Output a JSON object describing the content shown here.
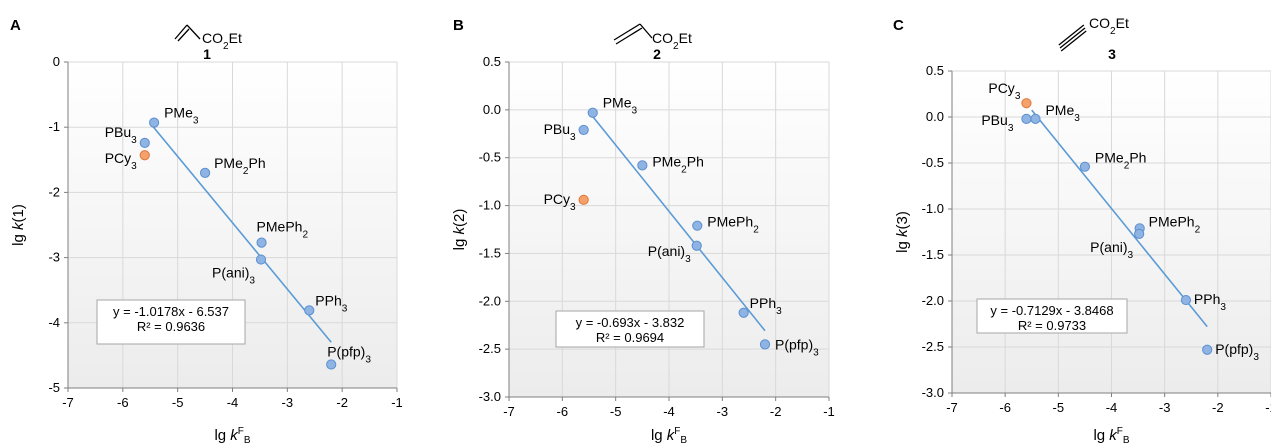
{
  "colors": {
    "series": "#8fb4e3",
    "series_stroke": "#5b8fd0",
    "outlier": "#f4a16b",
    "outlier_stroke": "#e0763a",
    "fit_line": "#5b9bd5",
    "grid": "#d9d9d9",
    "plot_bg_top": "#ffffff",
    "plot_bg_bottom": "#eeeeee"
  },
  "chart_data": [
    {
      "type": "scatter",
      "panel_letter": "A",
      "compound_number": "1",
      "compound_formula": "CO2Et",
      "xlabel": "lg kFB",
      "ylabel": "lg k(1)",
      "xlim": [
        -7,
        -1
      ],
      "ylim": [
        -5,
        0
      ],
      "xticks": [
        -7,
        -6,
        -5,
        -4,
        -3,
        -2,
        -1
      ],
      "yticks": [
        -5,
        -4,
        -3,
        -2,
        -1,
        0
      ],
      "xtick_labels": [
        "-7",
        "-6",
        "-5",
        "-4",
        "-3",
        "-2",
        "-1"
      ],
      "ytick_labels": [
        "-5",
        "-4",
        "-3",
        "-2",
        "-1",
        "0"
      ],
      "grid": true,
      "points": [
        {
          "label": "PMe3",
          "x": -5.43,
          "y": -0.93
        },
        {
          "label": "PBu3",
          "x": -5.6,
          "y": -1.24
        },
        {
          "label": "PCy3",
          "x": -5.6,
          "y": -1.43,
          "outlier": true
        },
        {
          "label": "PMe2Ph",
          "x": -4.5,
          "y": -1.7
        },
        {
          "label": "PMePh2",
          "x": -3.47,
          "y": -2.77
        },
        {
          "label": "P(ani)3",
          "x": -3.48,
          "y": -3.03
        },
        {
          "label": "PPh3",
          "x": -2.6,
          "y": -3.81
        },
        {
          "label": "P(pfp)3",
          "x": -2.2,
          "y": -4.64
        }
      ],
      "fit": {
        "slope": -1.0178,
        "intercept": -6.537,
        "x_range": [
          -5.5,
          -2.2
        ],
        "equation": "y = -1.0178x - 6.537",
        "r2": "R² = 0.9636"
      }
    },
    {
      "type": "scatter",
      "panel_letter": "B",
      "compound_number": "2",
      "compound_formula": "CO2Et",
      "xlabel": "lg kFB",
      "ylabel": "lg k(2)",
      "xlim": [
        -7,
        -1
      ],
      "ylim": [
        -3,
        0.5
      ],
      "xticks": [
        -7,
        -6,
        -5,
        -4,
        -3,
        -2,
        -1
      ],
      "yticks": [
        -3,
        -2.5,
        -2,
        -1.5,
        -1,
        -0.5,
        0,
        0.5
      ],
      "xtick_labels": [
        "-7",
        "-6",
        "-5",
        "-4",
        "-3",
        "-2",
        "-1"
      ],
      "ytick_labels": [
        "-3.0",
        "-2.5",
        "-2.0",
        "-1.5",
        "-1.0",
        "-0.5",
        "0.0",
        "0.5"
      ],
      "grid": true,
      "points": [
        {
          "label": "PMe3",
          "x": -5.43,
          "y": -0.03
        },
        {
          "label": "PBu3",
          "x": -5.6,
          "y": -0.21
        },
        {
          "label": "PMe2Ph",
          "x": -4.5,
          "y": -0.58
        },
        {
          "label": "PCy3",
          "x": -5.6,
          "y": -0.94,
          "outlier": true
        },
        {
          "label": "PMePh2",
          "x": -3.47,
          "y": -1.21
        },
        {
          "label": "P(ani)3",
          "x": -3.48,
          "y": -1.42
        },
        {
          "label": "PPh3",
          "x": -2.6,
          "y": -2.12
        },
        {
          "label": "P(pfp)3",
          "x": -2.2,
          "y": -2.45
        }
      ],
      "fit": {
        "slope": -0.693,
        "intercept": -3.832,
        "x_range": [
          -5.5,
          -2.2
        ],
        "equation": "y = -0.693x - 3.832",
        "r2": "R² = 0.9694"
      }
    },
    {
      "type": "scatter",
      "panel_letter": "C",
      "compound_number": "3",
      "compound_formula": "CO2Et",
      "xlabel": "lg kFB",
      "ylabel": "lg k(3)",
      "xlim": [
        -7,
        -1
      ],
      "ylim": [
        -3,
        0.5
      ],
      "xticks": [
        -7,
        -6,
        -5,
        -4,
        -3,
        -2,
        -1
      ],
      "yticks": [
        -3,
        -2.5,
        -2,
        -1.5,
        -1,
        -0.5,
        0,
        0.5
      ],
      "xtick_labels": [
        "-7",
        "-6",
        "-5",
        "-4",
        "-3",
        "-2",
        "-1"
      ],
      "ytick_labels": [
        "-3.0",
        "-2.5",
        "-2.0",
        "-1.5",
        "-1.0",
        "-0.5",
        "0.0",
        "0.5"
      ],
      "grid": true,
      "points": [
        {
          "label": "PCy3",
          "x": -5.6,
          "y": 0.15,
          "outlier": true
        },
        {
          "label": "PMe3",
          "x": -5.43,
          "y": -0.02
        },
        {
          "label": "PBu3",
          "x": -5.6,
          "y": -0.02
        },
        {
          "label": "PMe2Ph",
          "x": -4.5,
          "y": -0.54
        },
        {
          "label": "PMePh2",
          "x": -3.47,
          "y": -1.21
        },
        {
          "label": "P(ani)3",
          "x": -3.48,
          "y": -1.27
        },
        {
          "label": "PPh3",
          "x": -2.6,
          "y": -1.99
        },
        {
          "label": "P(pfp)3",
          "x": -2.2,
          "y": -2.53
        }
      ],
      "fit": {
        "slope": -0.7129,
        "intercept": -3.8468,
        "x_range": [
          -5.5,
          -2.2
        ],
        "equation": "y = -0.7129x - 3.8468",
        "r2": "R² = 0.9733"
      }
    }
  ]
}
